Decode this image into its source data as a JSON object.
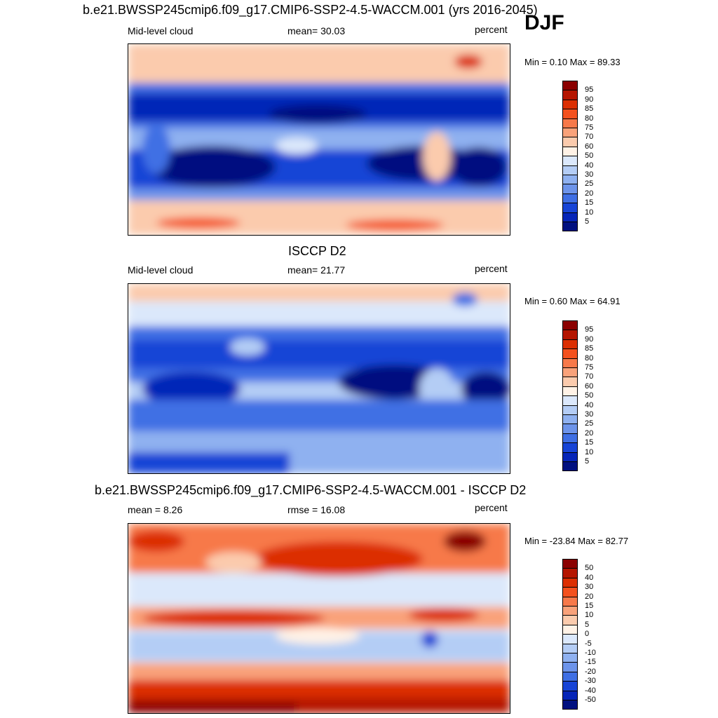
{
  "season": "DJF",
  "panels": [
    {
      "title": "b.e21.BWSSP245cmip6.f09_g17.CMIP6-SSP2-4.5-WACCM.001 (yrs 2016-2045)",
      "left_label": "Mid-level cloud",
      "center_label": "mean=  30.03",
      "units": "percent",
      "minmax": "Min =   0.10 Max =  89.33",
      "colorbar": {
        "levels": [
          "95",
          "90",
          "85",
          "80",
          "75",
          "70",
          "60",
          "50",
          "40",
          "30",
          "25",
          "20",
          "15",
          "10",
          "5"
        ],
        "colors": [
          "#8b0000",
          "#b51500",
          "#dc2f02",
          "#f4511e",
          "#f7794a",
          "#f9a27a",
          "#fbcbad",
          "#fff2e6",
          "#dbe8fb",
          "#b4cdf5",
          "#8fb1f0",
          "#6d94ea",
          "#3f6fe4",
          "#1744d6",
          "#0625b8",
          "#001080"
        ]
      }
    },
    {
      "title": "ISCCP D2",
      "left_label": "Mid-level cloud",
      "center_label": "mean=  21.77",
      "units": "percent",
      "minmax": "Min =   0.60 Max =  64.91",
      "colorbar": {
        "levels": [
          "95",
          "90",
          "85",
          "80",
          "75",
          "70",
          "60",
          "50",
          "40",
          "30",
          "25",
          "20",
          "15",
          "10",
          "5"
        ],
        "colors": [
          "#8b0000",
          "#b51500",
          "#dc2f02",
          "#f4511e",
          "#f7794a",
          "#f9a27a",
          "#fbcbad",
          "#fff2e6",
          "#dbe8fb",
          "#b4cdf5",
          "#8fb1f0",
          "#6d94ea",
          "#3f6fe4",
          "#1744d6",
          "#0625b8",
          "#001080"
        ]
      }
    },
    {
      "title": "b.e21.BWSSP245cmip6.f09_g17.CMIP6-SSP2-4.5-WACCM.001 - ISCCP D2",
      "left_label": "mean =   8.26",
      "center_label": "rmse =  16.08",
      "units": "percent",
      "minmax": "Min = -23.84 Max =  82.77",
      "colorbar": {
        "levels": [
          "50",
          "40",
          "30",
          "20",
          "15",
          "10",
          "5",
          "0",
          "-5",
          "-10",
          "-15",
          "-20",
          "-30",
          "-40",
          "-50"
        ],
        "colors": [
          "#8b0000",
          "#b51500",
          "#dc2f02",
          "#f4511e",
          "#f7794a",
          "#f9a27a",
          "#fbcbad",
          "#fff2e6",
          "#dbe8fb",
          "#b4cdf5",
          "#8fb1f0",
          "#6d94ea",
          "#3f6fe4",
          "#1744d6",
          "#0625b8",
          "#001080"
        ]
      }
    }
  ]
}
